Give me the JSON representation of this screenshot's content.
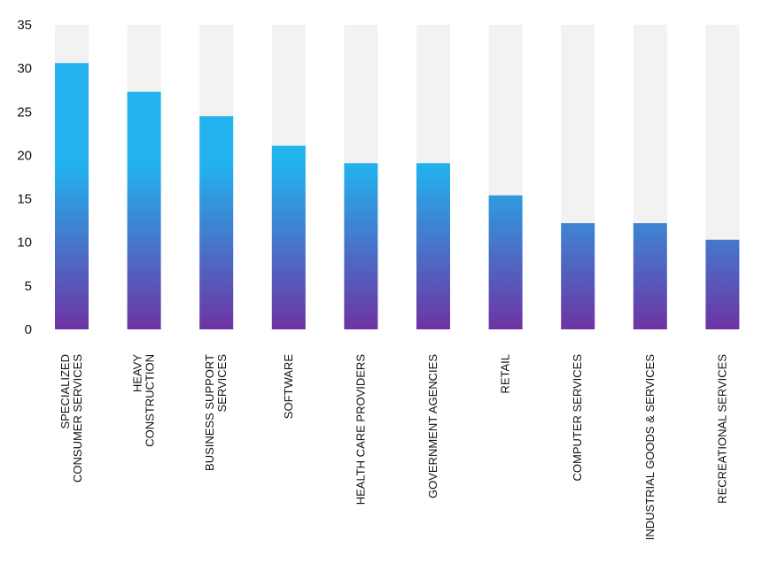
{
  "chart_data": {
    "type": "bar",
    "categories": [
      [
        "SPECIALIZED",
        "CONSUMER SERVICES"
      ],
      [
        "HEAVY",
        "CONSTRUCTION"
      ],
      [
        "BUSINESS SUPPORT",
        "SERVICES"
      ],
      [
        "SOFTWARE"
      ],
      [
        "HEALTH CARE PROVIDERS"
      ],
      [
        "GOVERNMENT AGENCIES"
      ],
      [
        "RETAIL"
      ],
      [
        "COMPUTER SERVICES"
      ],
      [
        "INDUSTRIAL GOODS & SERVICES"
      ],
      [
        "RECREATIONAL SERVICES"
      ]
    ],
    "values": [
      30.6,
      27.3,
      24.5,
      21.1,
      19.1,
      19.1,
      15.4,
      12.2,
      12.2,
      10.3
    ],
    "ylim": [
      0,
      35
    ],
    "yticks": [
      0,
      5,
      10,
      15,
      20,
      25,
      30,
      35
    ],
    "background_bar_max": 35,
    "grid": false,
    "colors": {
      "bar_top": "#22B3EE",
      "bar_bottom": "#6E33A3",
      "track": "#F2F2F2"
    }
  }
}
